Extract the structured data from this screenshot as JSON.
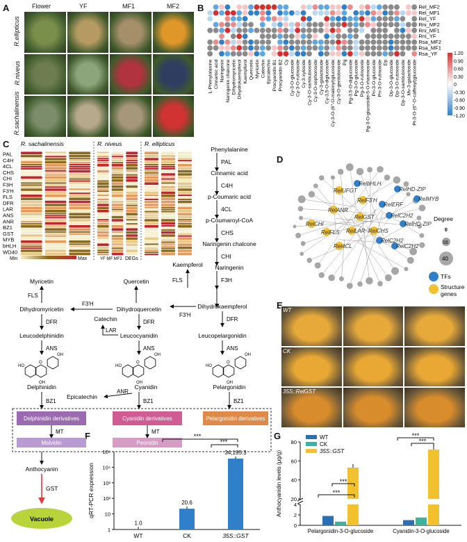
{
  "panels": {
    "A": "A",
    "B": "B",
    "C": "C",
    "D": "D",
    "E": "E",
    "F": "F",
    "G": "G"
  },
  "panelA": {
    "columns": [
      "Flower",
      "YF",
      "MF1",
      "MF2"
    ],
    "rows": [
      "R.ellipticus",
      "R.niveus",
      "R.sachalinensis"
    ],
    "colors": {
      "r0": [
        "#7b8f4c",
        "#b59b63",
        "#a58f6b",
        "#e0972a"
      ],
      "r1": [
        "#6d7d50",
        "#8ca57a",
        "#b1333f",
        "#2f3d60"
      ],
      "r2": [
        "#7b8d6a",
        "#b6a98c",
        "#a6967a",
        "#d13232"
      ]
    }
  },
  "panelB": {
    "row_labels": [
      "Rel_MF2",
      "Rel_MF1",
      "Rel_YF",
      "Rni_MF2",
      "Rni_MF1",
      "Rni_YF",
      "Rsa_MF2",
      "Rsa_MF1",
      "Rsa_YF"
    ],
    "col_labels": [
      "L-Phenylalanine",
      "Cinnamic acid",
      "Naringenin",
      "Naringenin chalcone",
      "Dihydromyricetin",
      "Dihydrokaempferol",
      "Kaempferol",
      "Quercetin",
      "Myricetin",
      "Catechin",
      "Epicatechin",
      "Procyanidin B1",
      "Procyanidin B2",
      "Cy",
      "Cy-3-O-glucoside",
      "Cy-3-O-rutinoside",
      "Cy-3-xyloside",
      "Cy-3-O-sambubioside",
      "Cy-3-O-sophoroside",
      "Cy-3-galactoside",
      "Cy-3,5-O-diglucoside",
      "Cy-3-O-(6''-O-malonyl)glucoside",
      "Cy-3-O-gentiobioside",
      "Pg",
      "Pg-3,5-O-diglucoside",
      "Pg-3-O-glucoside",
      "Pg-3-O-rutinoside",
      "Pg-3-O-glucoside-5-O-rhamnoside",
      "Pn-3-O-glucoside",
      "Pn-3-O-rutinoside",
      "Dp",
      "Dp-3-O-glucoside",
      "Dp-3-O-rutinoside",
      "Dp-3-O-sambubioside",
      "Mv-3-galactoside",
      "Pt-3-O-(6''-O-caffeoyl)glucoside"
    ],
    "legend_ticks": [
      "1.20",
      "0.90",
      "0.60",
      "0.30",
      "0",
      "-0.30",
      "-0.60",
      "-0.90",
      "-1.20"
    ],
    "palette": {
      "high": "#d32f2f",
      "mid": "#ffffff",
      "low": "#2f7fc9",
      "na": "#8a8a8a"
    }
  },
  "panelC": {
    "species": [
      "R. sachalinensis",
      "R. niveus",
      "R. ellipticus"
    ],
    "genes": [
      "PAL",
      "C4H",
      "4CL",
      "CHS",
      "CHI",
      "F3H",
      "F3'H",
      "FLS",
      "DFR",
      "LAR",
      "ANS",
      "ANR",
      "BZ1",
      "GST",
      "MYB",
      "bHLH",
      "WD40"
    ],
    "legend_min": "Min",
    "legend_max": "Max",
    "legend_degs": "DEGs",
    "stage_labels": [
      "YF",
      "MF",
      "MF2"
    ],
    "colors": {
      "max": "#c0272d",
      "mid": "#e6c98a",
      "min": "#f6ecc8",
      "dark": "#8c6a1c"
    }
  },
  "pathway": {
    "main_chain": [
      "Phenylalanine",
      "PAL",
      "Cinnamic acid",
      "C4H",
      "p-Coumaric acid",
      "4CL",
      "p-Coumaroyl-CoA",
      "CHS",
      "Naringenin chalcone",
      "CHI",
      "Naringenin",
      "F3H"
    ],
    "branch": {
      "myricetin": "Myricetin",
      "quercetin": "Quercetin",
      "kaempferol": "Kaempferol",
      "fls1": "FLS",
      "fls2": "FLS",
      "f3h_prime": "F3'H",
      "f3h_prime2": "F3'H",
      "dhm": "Dihydromyricetin",
      "dhq": "Dihydroquercetin",
      "dhk": "Dihydrokaempferol",
      "dfr": "DFR",
      "catechin": "Catechin",
      "lar": "LAR",
      "leucodel": "Leucodelphinidin",
      "leucocy": "Leucocyanidin",
      "leucopel": "Leucopelargonidin",
      "ans": "ANS",
      "delphinidin": "Delphinidin",
      "cyanidin": "Cyanidin",
      "pelargonidin": "Pelargonidin",
      "epicatechin": "Epicatechin",
      "anr": "ANR",
      "bz1": "BZ1",
      "mt": "MT",
      "del_deriv": "Delphinidin derivatives",
      "cy_deriv": "Cyanidin derivatives",
      "pel_deriv": "Pelargonidin derivatives",
      "malvidin": "Malvidin",
      "peonidin": "Peonidin",
      "anthocyanin": "Anthocyanin",
      "gst": "GST",
      "vacuole": "Vacuole"
    },
    "colors": {
      "del": "#9b6bb1",
      "cy": "#cf5c93",
      "pel": "#e08a4a",
      "mal": "#b89bd0",
      "peo": "#d79cc3",
      "vacuole": "#b8d43a"
    }
  },
  "panelD": {
    "nodes_tf": [
      "RelbHLH",
      "RelHD-ZIP",
      "RelMYB",
      "RelERF",
      "RelC2H2",
      "RelHD-ZIP",
      "RelC2H2",
      "RelC2H2"
    ],
    "nodes_struct": [
      "RelUFGT",
      "RelF3'H",
      "RelANR",
      "RelGST",
      "RelCHI",
      "RelFLS",
      "RelLAR",
      "RelCHS",
      "Rel4CL"
    ],
    "legend_degree": "Degree",
    "degree_values": [
      "1",
      "16",
      "40"
    ],
    "legend_tf": "TFs",
    "legend_struct": "Structure genes",
    "colors": {
      "tf": "#2f7fc9",
      "struct": "#f2c12e",
      "peripheral": "#a6a6a6"
    }
  },
  "panelE": {
    "row_labels": [
      "WT",
      "CK",
      "35S::RelGST"
    ],
    "colors": [
      "#e6a93a",
      "#e8a833",
      "#d88c2c"
    ]
  },
  "panelF": {
    "ylabel": "qRT-PCR expression",
    "sig": [
      "***",
      "***"
    ],
    "chart_data": {
      "type": "bar",
      "categories": [
        "WT",
        "CK",
        "35S::GST"
      ],
      "values": [
        1.0,
        20.6,
        34195.3
      ],
      "value_labels": [
        "1.0",
        "20.6",
        "34,195.3"
      ],
      "yscale": "log",
      "yticks": [
        "1",
        "10",
        "10²",
        "10³",
        "10⁴",
        "10⁵"
      ],
      "color": "#2f7fc9"
    }
  },
  "panelG": {
    "ylabel": "Anthocyanidin levels (μg/g)",
    "legend": [
      "WT",
      "CK",
      "35S::GST"
    ],
    "sig": [
      "***",
      "***",
      "***",
      "***"
    ],
    "chart_data": {
      "type": "bar",
      "categories": [
        "Pelargonidin-3-O-glucoside",
        "Cyanidin-3-O-glucoside"
      ],
      "series": [
        {
          "name": "WT",
          "values": [
            1.8,
            1.0
          ],
          "color": "#2b6fb4"
        },
        {
          "name": "CK",
          "values": [
            0.7,
            1.5
          ],
          "color": "#3cb39a"
        },
        {
          "name": "35S::GST",
          "values": [
            53,
            72
          ],
          "color": "#f2c12e"
        }
      ],
      "yticks": [
        "0",
        "2",
        "4",
        "20",
        "40",
        "60",
        "80"
      ],
      "broken_axis": true
    }
  }
}
